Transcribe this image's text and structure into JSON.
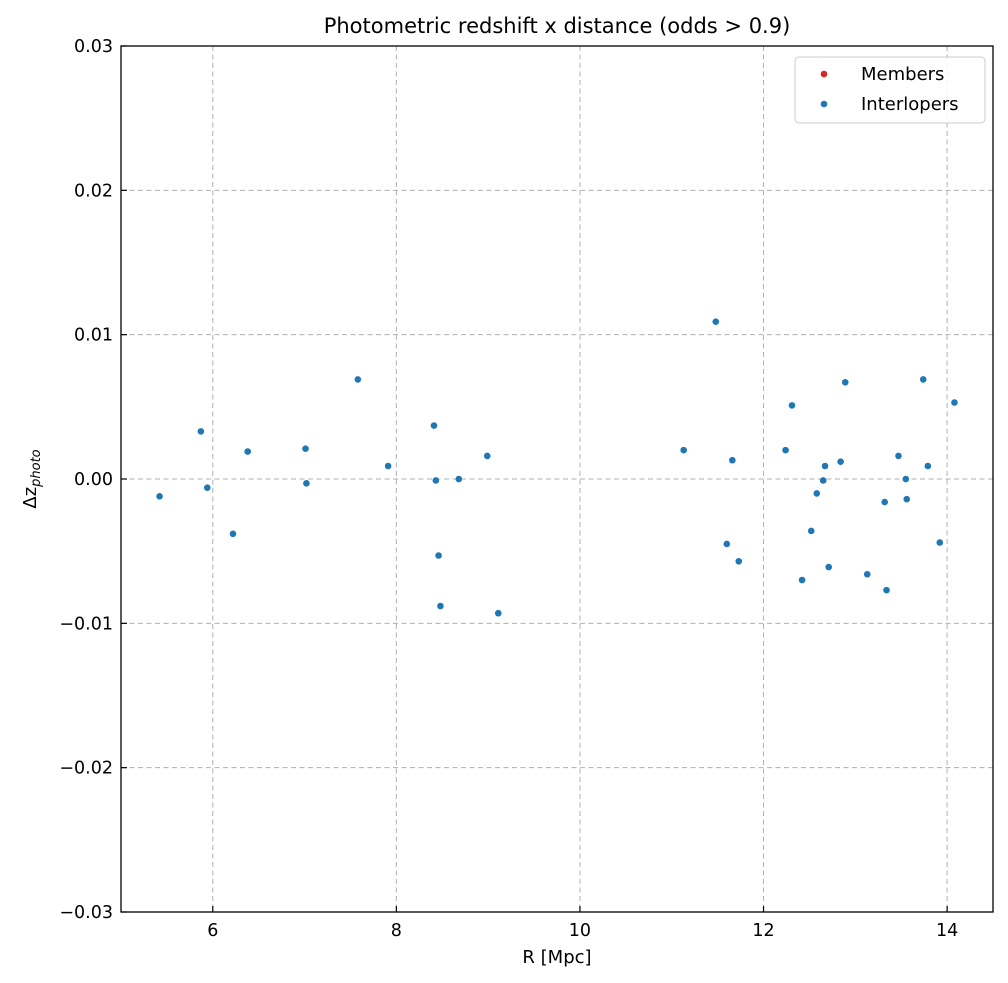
{
  "chart_data": {
    "type": "scatter",
    "title": "Photometric redshift x distance (odds > 0.9)",
    "xlabel": "R [Mpc]",
    "ylabel_main": "Δz",
    "ylabel_sub": "photo",
    "xlim": [
      5.0,
      14.5
    ],
    "ylim": [
      -0.03,
      0.03
    ],
    "xticks": [
      6,
      8,
      10,
      12,
      14
    ],
    "yticks": [
      -0.03,
      -0.02,
      -0.01,
      0.0,
      0.01,
      0.02,
      0.03
    ],
    "xtick_labels": [
      "6",
      "8",
      "10",
      "12",
      "14"
    ],
    "ytick_labels": [
      "−0.03",
      "−0.02",
      "−0.01",
      "0.00",
      "0.01",
      "0.02",
      "0.03"
    ],
    "grid": true,
    "legend_placement": "top-right",
    "series": [
      {
        "name": "Members",
        "color": "#d62728",
        "points": []
      },
      {
        "name": "Interlopers",
        "color": "#1f77b4",
        "points": [
          [
            5.42,
            -0.0012
          ],
          [
            5.87,
            0.0033
          ],
          [
            5.94,
            -0.0006
          ],
          [
            6.22,
            -0.0038
          ],
          [
            6.38,
            0.0019
          ],
          [
            7.01,
            0.0021
          ],
          [
            7.02,
            -0.0003
          ],
          [
            7.58,
            0.0069
          ],
          [
            7.91,
            0.0009
          ],
          [
            8.41,
            0.0037
          ],
          [
            8.43,
            -0.0001
          ],
          [
            8.46,
            -0.0053
          ],
          [
            8.48,
            -0.0088
          ],
          [
            8.68,
            0.0
          ],
          [
            8.99,
            0.0016
          ],
          [
            9.11,
            -0.0093
          ],
          [
            11.13,
            0.002
          ],
          [
            11.48,
            0.0109
          ],
          [
            11.6,
            -0.0045
          ],
          [
            11.66,
            0.0013
          ],
          [
            11.73,
            -0.0057
          ],
          [
            12.24,
            0.002
          ],
          [
            12.31,
            0.0051
          ],
          [
            12.42,
            -0.007
          ],
          [
            12.52,
            -0.0036
          ],
          [
            12.58,
            -0.001
          ],
          [
            12.65,
            -0.0001
          ],
          [
            12.67,
            0.0009
          ],
          [
            12.71,
            -0.0061
          ],
          [
            12.84,
            0.0012
          ],
          [
            12.89,
            0.0067
          ],
          [
            13.13,
            -0.0066
          ],
          [
            13.32,
            -0.0016
          ],
          [
            13.34,
            -0.0077
          ],
          [
            13.47,
            0.0016
          ],
          [
            13.55,
            0.0
          ],
          [
            13.56,
            -0.0014
          ],
          [
            13.74,
            0.0069
          ],
          [
            13.79,
            0.0009
          ],
          [
            13.92,
            -0.0044
          ],
          [
            14.08,
            0.0053
          ]
        ]
      }
    ]
  }
}
